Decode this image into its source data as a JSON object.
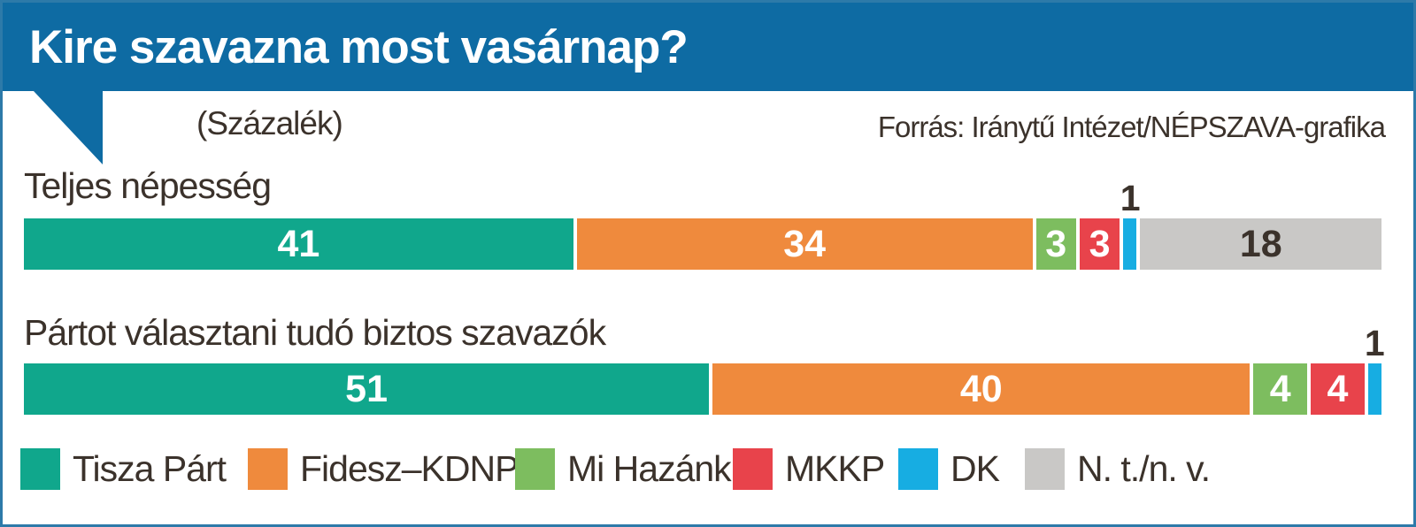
{
  "title": "Kire szavazna most vasárnap?",
  "subtitle": "(Százalék)",
  "source": "Forrás: Iránytű Intézet/NÉPSZAVA-grafika",
  "colors": {
    "header_blue": "#0e6ba3",
    "frame_border": "#2d7aa9",
    "dark_text": "#3b322b",
    "white_text": "#ffffff"
  },
  "legend": [
    {
      "label": "Tisza Párt",
      "color": "#10a78c"
    },
    {
      "label": "Fidesz–KDNP",
      "color": "#ef8a3d"
    },
    {
      "label": "Mi Hazánk",
      "color": "#7dbd5f"
    },
    {
      "label": "MKKP",
      "color": "#e8434b"
    },
    {
      "label": "DK",
      "color": "#17ade2"
    },
    {
      "label": "N. t./n. v.",
      "color": "#c9c8c6"
    }
  ],
  "chart_data": {
    "type": "bar",
    "orientation": "horizontal",
    "stacked": true,
    "unit": "percent",
    "xlim": [
      0,
      100
    ],
    "grid": false,
    "legend_position": "bottom",
    "series_labels": [
      "Tisza Párt",
      "Fidesz–KDNP",
      "Mi Hazánk",
      "MKKP",
      "DK",
      "N. t./n. v."
    ],
    "rows": [
      {
        "label": "Teljes népesség",
        "values": [
          41,
          34,
          3,
          3,
          1,
          18
        ]
      },
      {
        "label": "Pártot választani tudó biztos szavazók",
        "values": [
          51,
          40,
          4,
          4,
          1
        ]
      }
    ]
  }
}
